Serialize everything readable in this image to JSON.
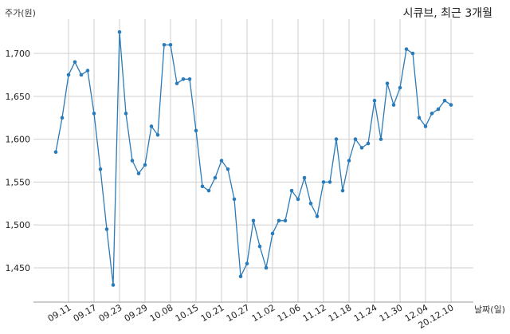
{
  "chart_data": {
    "type": "line",
    "title": "시큐브, 최근 3개월",
    "ylabel": "주가(원)",
    "xlabel": "날짜(일)",
    "ylim": [
      1410,
      1740
    ],
    "yticks": [
      "1,450",
      "1,500",
      "1,550",
      "1,600",
      "1,650",
      "1,700"
    ],
    "ytick_values": [
      1450,
      1500,
      1550,
      1600,
      1650,
      1700
    ],
    "xticks": [
      "09.11",
      "09.17",
      "09.23",
      "09.29",
      "10.08",
      "10.15",
      "10.21",
      "10.27",
      "11.02",
      "11.06",
      "11.12",
      "11.18",
      "11.24",
      "11.30",
      "12.04",
      "20.12.10"
    ],
    "xtick_indices": [
      2,
      6,
      10,
      14,
      18,
      22,
      26,
      30,
      34,
      38,
      42,
      46,
      50,
      54,
      58,
      62
    ],
    "grid": true,
    "series": [
      {
        "color": "#2b7bb9",
        "values": [
          1585,
          1625,
          1675,
          1690,
          1675,
          1680,
          1630,
          1565,
          1495,
          1430,
          1725,
          1630,
          1575,
          1560,
          1570,
          1615,
          1605,
          1710,
          1710,
          1665,
          1670,
          1670,
          1610,
          1545,
          1540,
          1555,
          1575,
          1565,
          1530,
          1440,
          1455,
          1505,
          1475,
          1450,
          1490,
          1505,
          1505,
          1540,
          1530,
          1555,
          1525,
          1510,
          1550,
          1550,
          1600,
          1540,
          1575,
          1600,
          1590,
          1595,
          1645,
          1600,
          1665,
          1640,
          1660,
          1705,
          1700,
          1625,
          1615,
          1630,
          1635,
          1645,
          1640
        ]
      }
    ]
  }
}
